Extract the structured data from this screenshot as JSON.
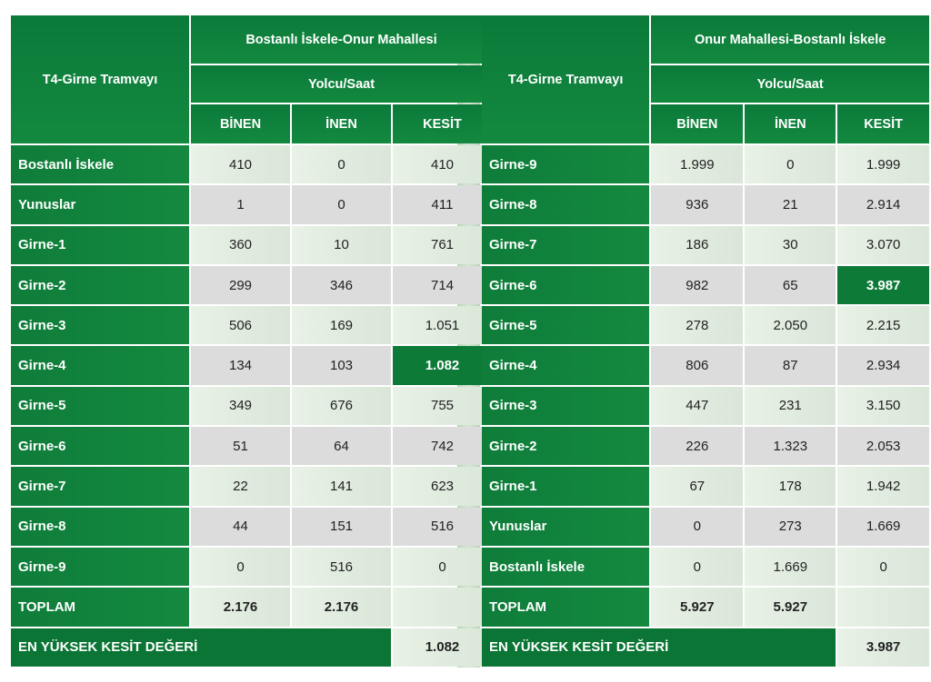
{
  "left": {
    "corner": "T4-Girne Tramvayı",
    "direction": "Bostanlı İskele-Onur Mahallesi",
    "unit": "Yolcu/Saat",
    "cols": [
      "BİNEN",
      "İNEN",
      "KESİT"
    ],
    "rows": [
      [
        "Bostanlı İskele",
        "410",
        "0",
        "410"
      ],
      [
        "Yunuslar",
        "1",
        "0",
        "411"
      ],
      [
        "Girne-1",
        "360",
        "10",
        "761"
      ],
      [
        "Girne-2",
        "299",
        "346",
        "714"
      ],
      [
        "Girne-3",
        "506",
        "169",
        "1.051"
      ],
      [
        "Girne-4",
        "134",
        "103",
        "1.082"
      ],
      [
        "Girne-5",
        "349",
        "676",
        "755"
      ],
      [
        "Girne-6",
        "51",
        "64",
        "742"
      ],
      [
        "Girne-7",
        "22",
        "141",
        "623"
      ],
      [
        "Girne-8",
        "44",
        "151",
        "516"
      ],
      [
        "Girne-9",
        "0",
        "516",
        "0"
      ]
    ],
    "total": [
      "TOPLAM",
      "2.176",
      "2.176",
      ""
    ],
    "max_label": "EN YÜKSEK KESİT DEĞERİ",
    "max_value": "1.082",
    "highlight_row": 5
  },
  "right": {
    "corner": "T4-Girne Tramvayı",
    "direction": "Onur Mahallesi-Bostanlı İskele",
    "unit": "Yolcu/Saat",
    "cols": [
      "BİNEN",
      "İNEN",
      "KESİT"
    ],
    "rows": [
      [
        "Girne-9",
        "1.999",
        "0",
        "1.999"
      ],
      [
        "Girne-8",
        "936",
        "21",
        "2.914"
      ],
      [
        "Girne-7",
        "186",
        "30",
        "3.070"
      ],
      [
        "Girne-6",
        "982",
        "65",
        "3.987"
      ],
      [
        "Girne-5",
        "278",
        "2.050",
        "2.215"
      ],
      [
        "Girne-4",
        "806",
        "87",
        "2.934"
      ],
      [
        "Girne-3",
        "447",
        "231",
        "3.150"
      ],
      [
        "Girne-2",
        "226",
        "1.323",
        "2.053"
      ],
      [
        "Girne-1",
        "67",
        "178",
        "1.942"
      ],
      [
        "Yunuslar",
        "0",
        "273",
        "1.669"
      ],
      [
        "Bostanlı İskele",
        "0",
        "1.669",
        "0"
      ]
    ],
    "total": [
      "TOPLAM",
      "5.927",
      "5.927",
      ""
    ],
    "max_label": "EN YÜKSEK KESİT DEĞERİ",
    "max_value": "3.987",
    "highlight_row": 3
  },
  "colors": {
    "header_green": "#0e7d3a",
    "highlight": "#0d7a37",
    "row_light": "#e3eee1",
    "row_grey": "#dcdcdc"
  }
}
